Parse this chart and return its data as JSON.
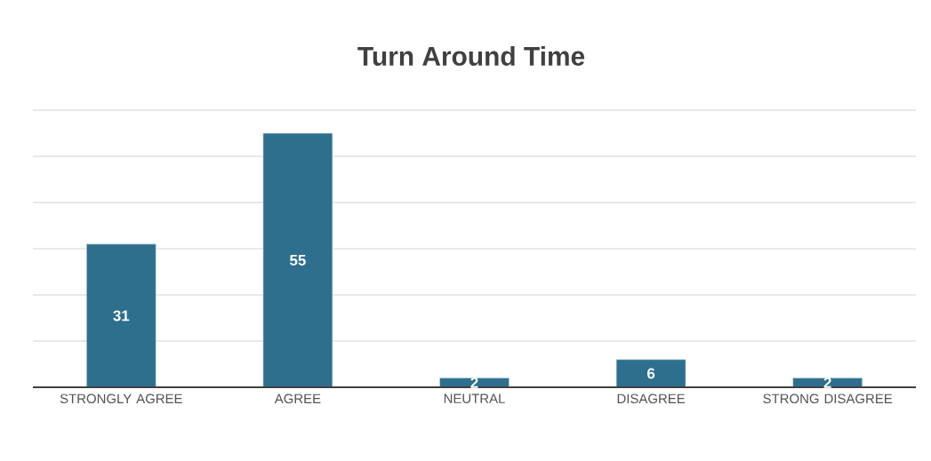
{
  "chart_data": {
    "type": "bar",
    "title": "Turn Around Time",
    "categories": [
      "STRONGLY AGREE",
      "AGREE",
      "NEUTRAL",
      "DISAGREE",
      "STRONG DISAGREE"
    ],
    "values": [
      31,
      55,
      2,
      6,
      2
    ],
    "color": "#2e6f8e",
    "ylim": [
      0,
      60
    ],
    "yticks": [
      {
        "value": 0,
        "label": null
      },
      {
        "value": 10,
        "label": null
      },
      {
        "value": 20,
        "label": null
      },
      {
        "value": 30,
        "label": null
      },
      {
        "value": 40,
        "label": null
      },
      {
        "value": 50,
        "label": null
      },
      {
        "value": 60,
        "label": null
      }
    ],
    "grid": "y",
    "data_labels": true,
    "tick_labels": "x"
  }
}
